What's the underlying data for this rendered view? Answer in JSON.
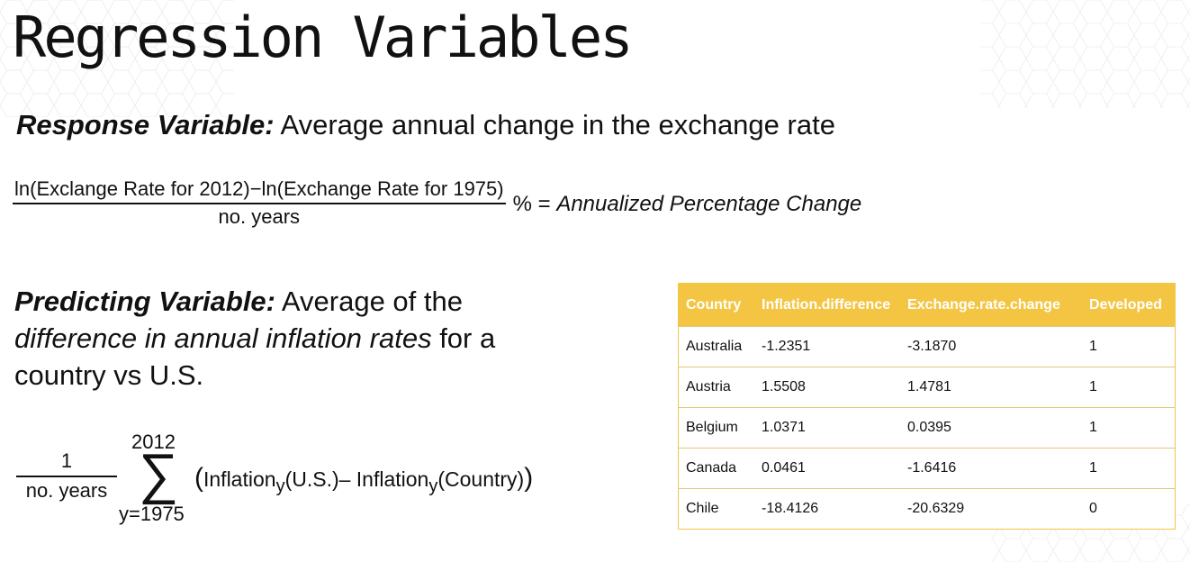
{
  "slide": {
    "title": "Regression Variables"
  },
  "response": {
    "label": "Response Variable:",
    "text": " Average annual change in the exchange rate"
  },
  "formula1": {
    "numerator": "ln(Exclange Rate for 2012)−ln(Exchange Rate for 1975)",
    "denominator": "no.  years",
    "percent_equals": "% = ",
    "result": "Annualized Percentage Change"
  },
  "predicting": {
    "label": "Predicting Variable:",
    "text1": " Average of the",
    "italic": "difference in annual inflation rates",
    "text2": " for a",
    "line3": "country vs U.S."
  },
  "formula2": {
    "numerator": "1",
    "denominator": "no. years",
    "upper_limit": "2012",
    "sigma": "∑",
    "lower_limit": "y=1975",
    "open_paren": "(",
    "term1": "Inflation",
    "sub1": "y",
    "arg1": "(U.S.)– ",
    "term2": "Inflation",
    "sub2": "y",
    "arg2": "(Country)",
    "close_paren": ")"
  },
  "table": {
    "header_color": "#f4c542",
    "columns": [
      "Country",
      "Inflation.difference",
      "Exchange.rate.change",
      "Developed"
    ],
    "rows": [
      [
        "Australia",
        "-1.2351",
        "-3.1870",
        "1"
      ],
      [
        "Austria",
        "1.5508",
        "1.4781",
        "1"
      ],
      [
        "Belgium",
        "1.0371",
        "0.0395",
        "1"
      ],
      [
        "Canada",
        "0.0461",
        "-1.6416",
        "1"
      ],
      [
        "Chile",
        "-18.4126",
        "-20.6329",
        "0"
      ]
    ]
  }
}
